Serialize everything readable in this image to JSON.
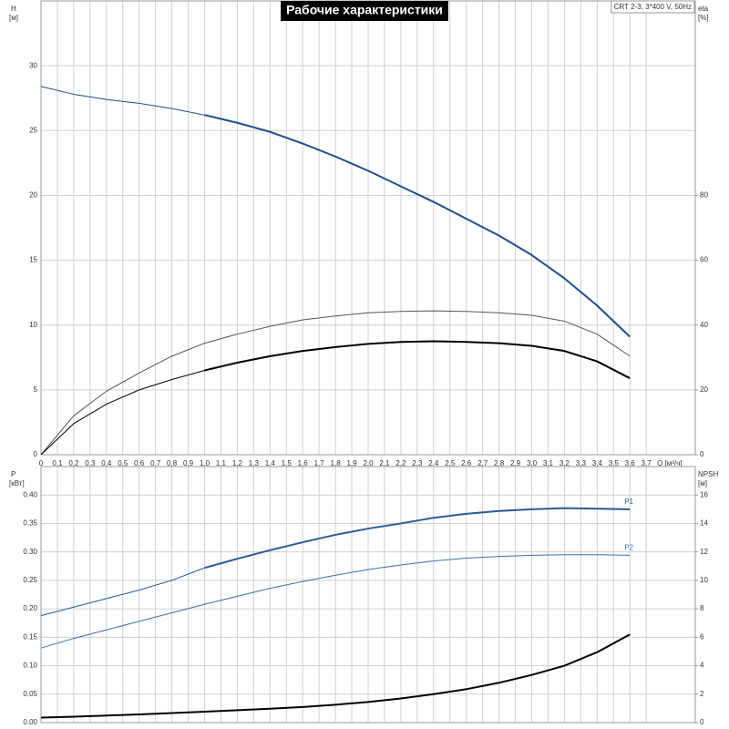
{
  "chart_data": [
    {
      "type": "line",
      "title": "Рабочие характеристики",
      "subtitle": "CRT 2-3, 3*400 V, 50Hz",
      "xlabel": "Q [м³/ч]",
      "ylabel": "H",
      "yunit": "[м]",
      "y2label": "eta",
      "y2unit": "[%]",
      "x": [
        0,
        0.2,
        0.4,
        0.6,
        0.8,
        1.0,
        1.2,
        1.4,
        1.6,
        1.8,
        2.0,
        2.2,
        2.4,
        2.6,
        2.8,
        3.0,
        3.2,
        3.4,
        3.6
      ],
      "xlim": [
        0,
        4
      ],
      "ylim": [
        0,
        35
      ],
      "y2lim": [
        0,
        140
      ],
      "xticks": [
        0,
        {
          "value": 0.1,
          "label": "0,1"
        },
        {
          "value": 0.2,
          "label": "0,2"
        },
        {
          "value": 0.3,
          "label": "0,3"
        },
        {
          "value": 0.4,
          "label": "0,4"
        },
        {
          "value": 0.5,
          "label": "0,5"
        },
        {
          "value": 0.6,
          "label": "0,6"
        },
        {
          "value": 0.7,
          "label": "0,7"
        },
        {
          "value": 0.8,
          "label": "0,8"
        },
        {
          "value": 0.9,
          "label": "0,9"
        },
        {
          "value": 1.0,
          "label": "1,0"
        },
        {
          "value": 1.1,
          "label": "1,1"
        },
        {
          "value": 1.2,
          "label": "1,2"
        },
        {
          "value": 1.3,
          "label": "1,3"
        },
        {
          "value": 1.4,
          "label": "1,4"
        },
        {
          "value": 1.5,
          "label": "1,5"
        },
        {
          "value": 1.6,
          "label": "1,6"
        },
        {
          "value": 1.7,
          "label": "1,7"
        },
        {
          "value": 1.8,
          "label": "1,8"
        },
        {
          "value": 1.9,
          "label": "1,9"
        },
        {
          "value": 2.0,
          "label": "2,0"
        },
        {
          "value": 2.1,
          "label": "2,1"
        },
        {
          "value": 2.2,
          "label": "2,2"
        },
        {
          "value": 2.3,
          "label": "2,3"
        },
        {
          "value": 2.4,
          "label": "2,4"
        },
        {
          "value": 2.5,
          "label": "2,5"
        },
        {
          "value": 2.6,
          "label": "2,6"
        },
        {
          "value": 2.7,
          "label": "2,7"
        },
        {
          "value": 2.8,
          "label": "2,8"
        },
        {
          "value": 2.9,
          "label": "2,9"
        },
        {
          "value": 3.0,
          "label": "3,0"
        },
        {
          "value": 3.1,
          "label": "3,1"
        },
        {
          "value": 3.2,
          "label": "3,2"
        },
        {
          "value": 3.3,
          "label": "3,3"
        },
        {
          "value": 3.4,
          "label": "3,4"
        },
        {
          "value": 3.5,
          "label": "3,5"
        },
        {
          "value": 3.6,
          "label": "3,6"
        },
        {
          "value": 3.7,
          "label": "3,7"
        }
      ],
      "yticks": [
        0,
        5,
        10,
        15,
        20,
        25,
        30
      ],
      "y2ticks": [
        0,
        20,
        40,
        60,
        80
      ],
      "grid": true,
      "series": [
        {
          "color": "#1f4e8c",
          "bold_from": 1.0,
          "values": [
            28.4,
            27.8,
            27.4,
            27.1,
            26.7,
            26.2,
            25.6,
            24.9,
            24.0,
            23.0,
            21.9,
            20.7,
            19.5,
            18.2,
            16.9,
            15.4,
            13.6,
            11.5,
            9.1
          ]
        },
        {
          "color": "#555555",
          "axis": "y2",
          "values": [
            0,
            12,
            19.6,
            25.2,
            30.4,
            34.4,
            37.2,
            39.6,
            41.6,
            42.8,
            43.8,
            44.2,
            44.4,
            44.2,
            43.8,
            43,
            41.2,
            37.2,
            30.4
          ]
        },
        {
          "color": "#000000",
          "axis": "y2",
          "bold_from": 1.0,
          "values": [
            0,
            9.6,
            15.6,
            20,
            23.2,
            26,
            28.4,
            30.4,
            32,
            33.2,
            34.2,
            34.8,
            35,
            34.8,
            34.4,
            33.6,
            32,
            28.8,
            23.6
          ]
        }
      ]
    },
    {
      "type": "line",
      "ylabel": "P",
      "yunit": "[кВт]",
      "y2label": "NPSH",
      "y2unit": "[м]",
      "x": [
        0,
        0.2,
        0.4,
        0.6,
        0.8,
        1.0,
        1.2,
        1.4,
        1.6,
        1.8,
        2.0,
        2.2,
        2.4,
        2.6,
        2.8,
        3.0,
        3.2,
        3.4,
        3.6
      ],
      "xlim": [
        0,
        4
      ],
      "ylim": [
        0,
        0.45
      ],
      "y2lim": [
        0,
        18
      ],
      "yticks": [
        {
          "value": 0,
          "label": "0.00"
        },
        {
          "value": 0.05,
          "label": "0.05"
        },
        {
          "value": 0.1,
          "label": "0.10"
        },
        {
          "value": 0.15,
          "label": "0.15"
        },
        {
          "value": 0.2,
          "label": "0.20"
        },
        {
          "value": 0.25,
          "label": "0.25"
        },
        {
          "value": 0.3,
          "label": "0.30"
        },
        {
          "value": 0.35,
          "label": "0.35"
        },
        {
          "value": 0.4,
          "label": "0.40"
        }
      ],
      "y2ticks": [
        0,
        2,
        4,
        6,
        8,
        10,
        12,
        14,
        16
      ],
      "grid": true,
      "series": [
        {
          "name": "P1",
          "color": "#2a5a96",
          "bold_from": 1.0,
          "values": [
            0.188,
            0.203,
            0.218,
            0.233,
            0.25,
            0.272,
            0.288,
            0.303,
            0.317,
            0.33,
            0.341,
            0.35,
            0.36,
            0.367,
            0.372,
            0.375,
            0.377,
            0.376,
            0.375
          ]
        },
        {
          "name": "P2",
          "color": "#3d6fae",
          "values": [
            0.131,
            0.148,
            0.163,
            0.178,
            0.193,
            0.208,
            0.222,
            0.236,
            0.248,
            0.259,
            0.269,
            0.277,
            0.284,
            0.289,
            0.292,
            0.294,
            0.295,
            0.295,
            0.294
          ]
        },
        {
          "color": "#000000",
          "axis": "y2",
          "bold_from": 0,
          "values": [
            0.35,
            0.42,
            0.5,
            0.58,
            0.67,
            0.77,
            0.87,
            0.98,
            1.1,
            1.26,
            1.45,
            1.7,
            2.0,
            2.35,
            2.8,
            3.35,
            4.0,
            4.95,
            6.2
          ]
        }
      ]
    }
  ]
}
